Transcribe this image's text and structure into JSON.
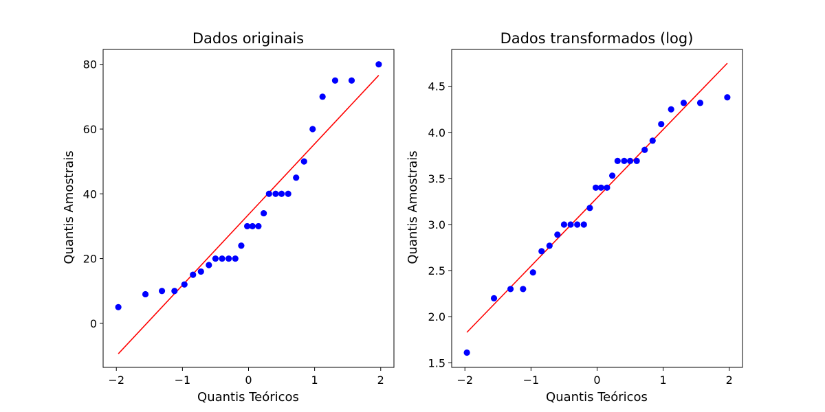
{
  "colors": {
    "points": "#0000ff",
    "line": "#ff0000",
    "axes": "#000000",
    "background": "#ffffff"
  },
  "chart_data": [
    {
      "type": "scatter",
      "title": "Dados originais",
      "xlabel": "Quantis Teóricos",
      "ylabel": "Quantis Amostrais",
      "xlim": [
        -2.2,
        2.2
      ],
      "ylim": [
        -13.6,
        84.6
      ],
      "xticks": [
        -2,
        -1,
        0,
        1,
        2
      ],
      "xtick_labels": [
        "−2",
        "−1",
        "0",
        "1",
        "2"
      ],
      "yticks": [
        0,
        20,
        40,
        60,
        80
      ],
      "ytick_labels": [
        "0",
        "20",
        "40",
        "60",
        "80"
      ],
      "grid": false,
      "legend": "none",
      "x": [
        -1.97,
        -1.56,
        -1.31,
        -1.12,
        -0.97,
        -0.84,
        -0.72,
        -0.6,
        -0.5,
        -0.4,
        -0.3,
        -0.2,
        -0.11,
        -0.02,
        0.06,
        0.15,
        0.23,
        0.31,
        0.41,
        0.5,
        0.6,
        0.72,
        0.84,
        0.97,
        1.12,
        1.31,
        1.56,
        1.97
      ],
      "y": [
        5,
        9,
        10,
        10,
        12,
        15,
        16,
        18,
        20,
        20,
        20,
        20,
        24,
        30,
        30,
        30,
        34,
        40,
        40,
        40,
        40,
        45,
        50,
        60,
        70,
        75,
        75,
        80
      ],
      "fit_line": {
        "x": [
          -1.97,
          1.97
        ],
        "y": [
          -9.4,
          76.6
        ]
      }
    },
    {
      "type": "scatter",
      "title": "Dados transformados (log)",
      "xlabel": "Quantis Teóricos",
      "ylabel": "Quantis Amostrais",
      "xlim": [
        -2.2,
        2.2
      ],
      "ylim": [
        1.45,
        4.9
      ],
      "xticks": [
        -2,
        -1,
        0,
        1,
        2
      ],
      "xtick_labels": [
        "−2",
        "−1",
        "0",
        "1",
        "2"
      ],
      "yticks": [
        1.5,
        2.0,
        2.5,
        3.0,
        3.5,
        4.0,
        4.5
      ],
      "ytick_labels": [
        "1.5",
        "2.0",
        "2.5",
        "3.0",
        "3.5",
        "4.0",
        "4.5"
      ],
      "grid": false,
      "legend": "none",
      "x": [
        -1.97,
        -1.56,
        -1.31,
        -1.12,
        -0.97,
        -0.84,
        -0.72,
        -0.6,
        -0.5,
        -0.4,
        -0.3,
        -0.2,
        -0.11,
        -0.02,
        0.06,
        0.15,
        0.23,
        0.31,
        0.41,
        0.5,
        0.6,
        0.72,
        0.84,
        0.97,
        1.12,
        1.31,
        1.56,
        1.97
      ],
      "y": [
        1.61,
        2.2,
        2.3,
        2.3,
        2.48,
        2.71,
        2.77,
        2.89,
        3.0,
        3.0,
        3.0,
        3.0,
        3.18,
        3.4,
        3.4,
        3.4,
        3.53,
        3.69,
        3.69,
        3.69,
        3.69,
        3.81,
        3.91,
        4.09,
        4.25,
        4.32,
        4.32,
        4.38
      ],
      "fit_line": {
        "x": [
          -1.97,
          1.97
        ],
        "y": [
          1.83,
          4.75
        ]
      }
    }
  ]
}
